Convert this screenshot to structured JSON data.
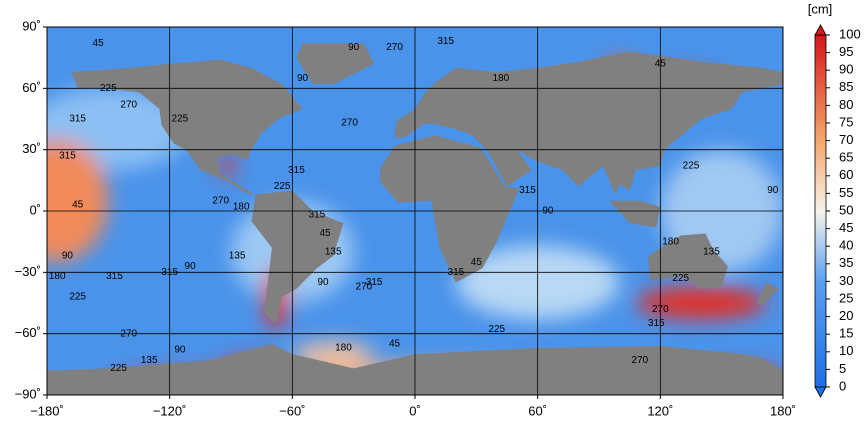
{
  "map": {
    "xticks": [
      {
        "value": -180,
        "label": "−180˚"
      },
      {
        "value": -120,
        "label": "−120˚"
      },
      {
        "value": -60,
        "label": "−60˚"
      },
      {
        "value": 0,
        "label": "0˚"
      },
      {
        "value": 60,
        "label": "60˚"
      },
      {
        "value": 120,
        "label": "120˚"
      },
      {
        "value": 180,
        "label": "180˚"
      }
    ],
    "yticks": [
      {
        "value": 90,
        "label": "90˚"
      },
      {
        "value": 60,
        "label": "60˚"
      },
      {
        "value": 30,
        "label": "30˚"
      },
      {
        "value": 0,
        "label": "0˚"
      },
      {
        "value": -30,
        "label": "−30˚"
      },
      {
        "value": -60,
        "label": "−60˚"
      },
      {
        "value": -90,
        "label": "−90˚"
      }
    ],
    "xlim": [
      -180,
      180
    ],
    "ylim": [
      -90,
      90
    ],
    "grid": true,
    "colorbar": {
      "unit": "[cm]",
      "range": [
        0,
        100
      ],
      "ticks": [
        0,
        5,
        10,
        15,
        20,
        25,
        30,
        35,
        40,
        45,
        50,
        55,
        60,
        65,
        70,
        75,
        80,
        85,
        90,
        95,
        100
      ]
    },
    "contour_labels": [
      45,
      90,
      270,
      315,
      225,
      270,
      315,
      225,
      315,
      45,
      90,
      180,
      315,
      225,
      270,
      135,
      90,
      225,
      315,
      135,
      90,
      315,
      225,
      270,
      180,
      315,
      135,
      45,
      315,
      90,
      225,
      315,
      45,
      315,
      90,
      180,
      135,
      225,
      270,
      315,
      270,
      90,
      225,
      45,
      180,
      270,
      90,
      45,
      270,
      180
    ]
  }
}
